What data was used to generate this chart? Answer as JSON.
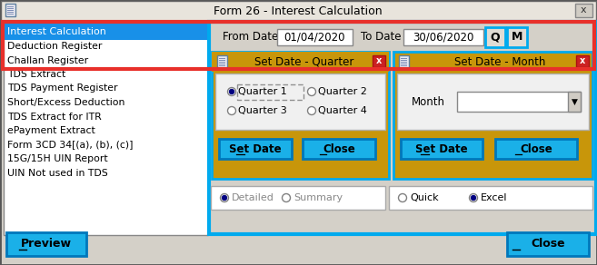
{
  "title": "Form 26 - Interest Calculation",
  "bg_color": "#d4d0c8",
  "red_border_color": "#e8302a",
  "cyan_border_color": "#00aaee",
  "gold_bg_color": "#c8960a",
  "list_items": [
    "Interest Calculation",
    "Deduction Register",
    "Challan Register",
    "TDS Extract",
    "TDS Payment Register",
    "Short/Excess Deduction",
    "TDS Extract for ITR",
    "ePayment Extract",
    "Form 3CD 34[(a), (b), (c)]",
    "15G/15H UIN Report",
    "UIN Not used in TDS"
  ],
  "from_date": "01/04/2020",
  "to_date": "30/06/2020",
  "quarter_options": [
    "Quarter 1",
    "Quarter 2",
    "Quarter 3",
    "Quarter 4"
  ],
  "button_color": "#1ab0e8",
  "selected_highlight": "#1890e8"
}
